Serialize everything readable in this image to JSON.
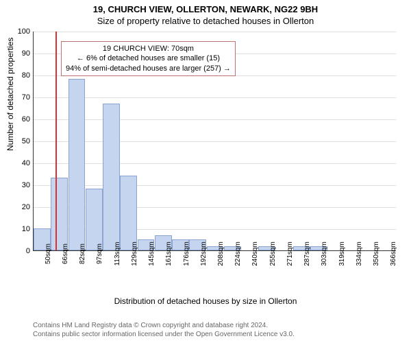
{
  "title_main": "19, CHURCH VIEW, OLLERTON, NEWARK, NG22 9BH",
  "title_sub": "Size of property relative to detached houses in Ollerton",
  "y_axis_label": "Number of detached properties",
  "x_axis_label": "Distribution of detached houses by size in Ollerton",
  "footer_line1": "Contains HM Land Registry data © Crown copyright and database right 2024.",
  "footer_line2": "Contains public sector information licensed under the Open Government Licence v3.0.",
  "info_box": {
    "line1": "19 CHURCH VIEW: 70sqm",
    "line2": "← 6% of detached houses are smaller (15)",
    "line3": "94% of semi-detached houses are larger (257) →"
  },
  "chart": {
    "type": "histogram",
    "ylim": [
      0,
      100
    ],
    "ytick_step": 10,
    "background_color": "#ffffff",
    "grid_color": "#e0e0e0",
    "bar_fill": "#c5d5f0",
    "bar_stroke": "#8aa3d0",
    "marker_color": "#d93030",
    "info_border": "#c07070",
    "tick_fontsize": 10,
    "label_fontsize": 12,
    "title_fontsize": 13,
    "marker_value": 70,
    "x_start": 50,
    "x_step": 16,
    "categories": [
      "50sqm",
      "66sqm",
      "82sqm",
      "97sqm",
      "113sqm",
      "129sqm",
      "145sqm",
      "161sqm",
      "176sqm",
      "192sqm",
      "208sqm",
      "224sqm",
      "240sqm",
      "255sqm",
      "271sqm",
      "287sqm",
      "303sqm",
      "319sqm",
      "334sqm",
      "350sqm",
      "366sqm"
    ],
    "values": [
      10,
      33,
      78,
      28,
      67,
      34,
      5,
      7,
      5,
      5,
      2,
      2,
      0,
      2,
      0,
      2,
      2,
      0,
      0,
      0,
      0
    ]
  }
}
